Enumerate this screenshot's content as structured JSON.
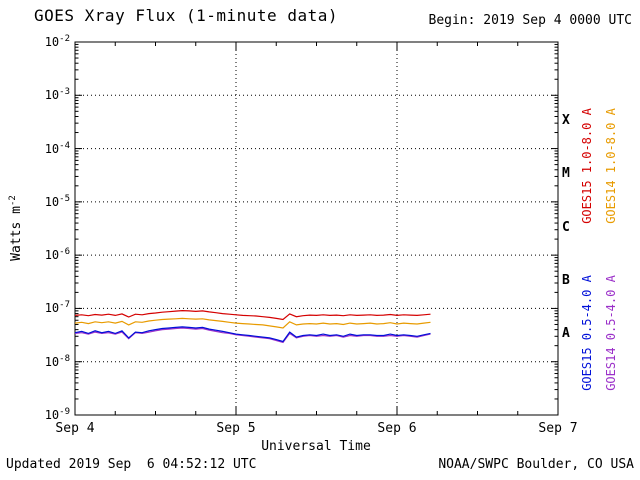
{
  "header": {
    "title": "GOES Xray Flux (1-minute data)",
    "begin_label": "Begin: 2019 Sep 4 0000 UTC"
  },
  "footer": {
    "updated": "Updated 2019 Sep  6 04:52:12 UTC",
    "source": "NOAA/SWPC Boulder, CO USA"
  },
  "axes": {
    "y_label_base": "Watts m",
    "y_label_exp": "-2",
    "x_label": "Universal Time",
    "y_tick_exponents": [
      "-2",
      "-3",
      "-4",
      "-5",
      "-6",
      "-7",
      "-8",
      "-9"
    ],
    "x_ticks": [
      "Sep 4",
      "Sep 5",
      "Sep 6",
      "Sep 7"
    ],
    "flare_classes": [
      "X",
      "M",
      "C",
      "B",
      "A"
    ]
  },
  "legend": [
    {
      "text": "GOES15 1.0-8.0 A",
      "color": "#d40000"
    },
    {
      "text": "GOES14 1.0-8.0 A",
      "color": "#e89b00"
    },
    {
      "text": "GOES15 0.5-4.0 A",
      "color": "#0010d9"
    },
    {
      "text": "GOES14 0.5-4.0 A",
      "color": "#9b30c9"
    }
  ],
  "chart_data": {
    "type": "line",
    "title": "GOES Xray Flux (1-minute data)",
    "xlabel": "Universal Time",
    "ylabel": "Watts m^-2",
    "y_scale": "log",
    "ylim": [
      1e-09,
      0.01
    ],
    "x_range_days": [
      "2019 Sep 4",
      "2019 Sep 7"
    ],
    "x_hours": {
      "start": 0,
      "step": 1,
      "count": 54,
      "unit": "hours from 2019-09-04 00:00 UTC"
    },
    "grid": {
      "vertical_days": [
        "Sep 5",
        "Sep 6"
      ],
      "horizontal_decades": [
        -3,
        -4,
        -5,
        -6,
        -7,
        -8
      ]
    },
    "series": [
      {
        "name": "GOES15 1.0-8.0 A",
        "color": "#d40000",
        "values": [
          7.4e-08,
          7.6e-08,
          7.3e-08,
          7.7e-08,
          7.5e-08,
          7.8e-08,
          7.4e-08,
          7.9e-08,
          6.9e-08,
          7.8e-08,
          7.6e-08,
          8e-08,
          8.2e-08,
          8.5e-08,
          8.7e-08,
          8.9e-08,
          9.1e-08,
          9e-08,
          8.8e-08,
          9e-08,
          8.6e-08,
          8.3e-08,
          8e-08,
          7.8e-08,
          7.6e-08,
          7.4e-08,
          7.3e-08,
          7.2e-08,
          7e-08,
          6.8e-08,
          6.5e-08,
          6.2e-08,
          7.9e-08,
          7e-08,
          7.3e-08,
          7.5e-08,
          7.4e-08,
          7.6e-08,
          7.4e-08,
          7.5e-08,
          7.3e-08,
          7.6e-08,
          7.4e-08,
          7.5e-08,
          7.6e-08,
          7.4e-08,
          7.5e-08,
          7.7e-08,
          7.4e-08,
          7.6e-08,
          7.5e-08,
          7.4e-08,
          7.6e-08,
          7.8e-08
        ]
      },
      {
        "name": "GOES14 1.0-8.0 A",
        "color": "#e89b00",
        "values": [
          5.3e-08,
          5.5e-08,
          5.2e-08,
          5.6e-08,
          5.4e-08,
          5.6e-08,
          5.3e-08,
          5.7e-08,
          4.9e-08,
          5.6e-08,
          5.5e-08,
          5.8e-08,
          6e-08,
          6.2e-08,
          6.3e-08,
          6.4e-08,
          6.5e-08,
          6.4e-08,
          6.3e-08,
          6.4e-08,
          6.1e-08,
          5.9e-08,
          5.7e-08,
          5.5e-08,
          5.3e-08,
          5.2e-08,
          5.1e-08,
          5e-08,
          4.9e-08,
          4.7e-08,
          4.5e-08,
          4.3e-08,
          5.6e-08,
          4.9e-08,
          5.1e-08,
          5.2e-08,
          5.1e-08,
          5.3e-08,
          5.1e-08,
          5.2e-08,
          5e-08,
          5.3e-08,
          5.1e-08,
          5.2e-08,
          5.3e-08,
          5.1e-08,
          5.2e-08,
          5.4e-08,
          5.1e-08,
          5.3e-08,
          5.2e-08,
          5.1e-08,
          5.3e-08,
          5.5e-08
        ]
      },
      {
        "name": "GOES15 0.5-4.0 A",
        "color": "#0010d9",
        "values": [
          3.5e-08,
          3.7e-08,
          3.4e-08,
          3.8e-08,
          3.5e-08,
          3.7e-08,
          3.4e-08,
          3.8e-08,
          2.8e-08,
          3.6e-08,
          3.5e-08,
          3.8e-08,
          4e-08,
          4.2e-08,
          4.3e-08,
          4.4e-08,
          4.5e-08,
          4.4e-08,
          4.3e-08,
          4.4e-08,
          4.1e-08,
          3.9e-08,
          3.7e-08,
          3.5e-08,
          3.3e-08,
          3.2e-08,
          3.1e-08,
          3e-08,
          2.9e-08,
          2.8e-08,
          2.6e-08,
          2.4e-08,
          3.6e-08,
          2.9e-08,
          3.1e-08,
          3.2e-08,
          3.1e-08,
          3.3e-08,
          3.1e-08,
          3.2e-08,
          3e-08,
          3.3e-08,
          3.1e-08,
          3.2e-08,
          3.2e-08,
          3.1e-08,
          3.1e-08,
          3.3e-08,
          3.1e-08,
          3.2e-08,
          3.1e-08,
          3e-08,
          3.2e-08,
          3.4e-08
        ]
      },
      {
        "name": "GOES14 0.5-4.0 A",
        "color": "#9b30c9",
        "values": [
          3.4e-08,
          3.5e-08,
          3.3e-08,
          3.6e-08,
          3.4e-08,
          3.5e-08,
          3.3e-08,
          3.6e-08,
          2.7e-08,
          3.5e-08,
          3.4e-08,
          3.6e-08,
          3.8e-08,
          4e-08,
          4.1e-08,
          4.2e-08,
          4.3e-08,
          4.2e-08,
          4.1e-08,
          4.2e-08,
          3.9e-08,
          3.7e-08,
          3.5e-08,
          3.4e-08,
          3.2e-08,
          3.1e-08,
          3e-08,
          2.9e-08,
          2.8e-08,
          2.7e-08,
          2.5e-08,
          2.3e-08,
          3.4e-08,
          2.8e-08,
          3e-08,
          3.1e-08,
          3e-08,
          3.1e-08,
          3e-08,
          3.1e-08,
          2.9e-08,
          3.1e-08,
          3e-08,
          3.1e-08,
          3.1e-08,
          3e-08,
          3e-08,
          3.1e-08,
          3e-08,
          3.1e-08,
          3e-08,
          2.9e-08,
          3.1e-08,
          3.3e-08
        ]
      }
    ]
  }
}
